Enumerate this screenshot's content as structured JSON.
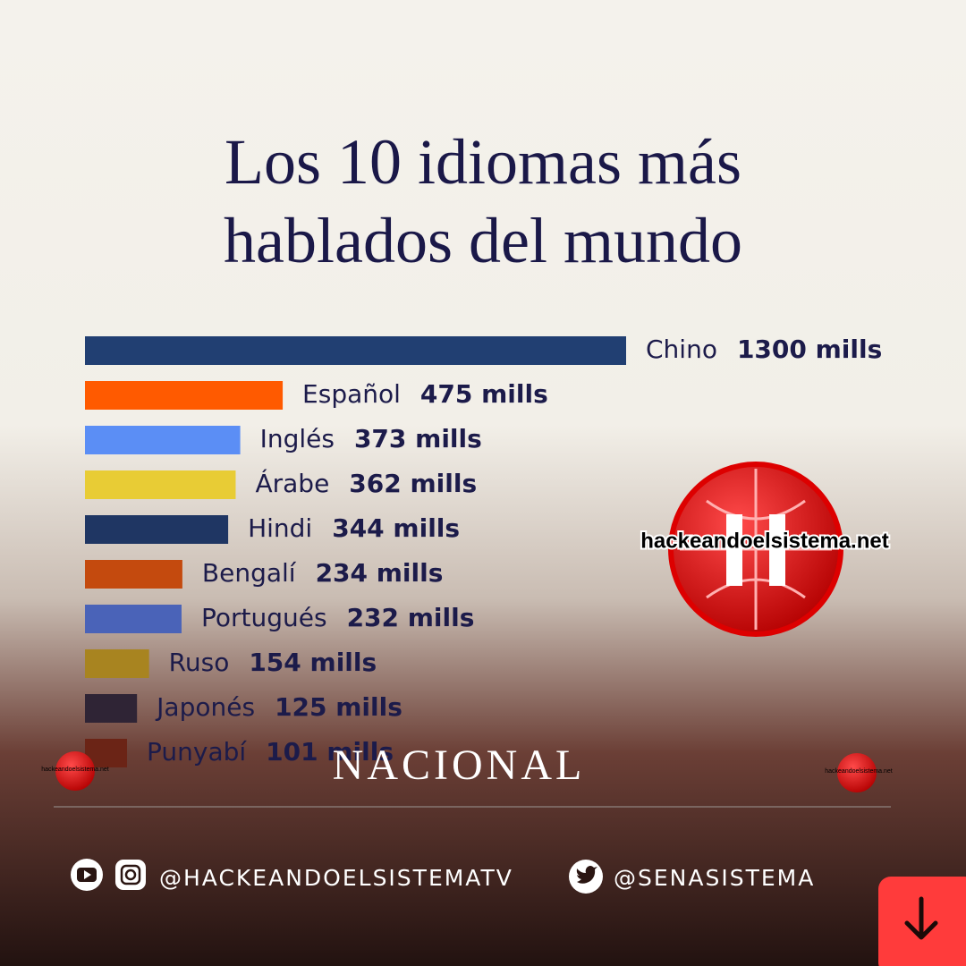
{
  "chart_data": {
    "type": "bar",
    "title": "Los 10 idiomas más hablados del mundo",
    "categories": [
      "Chino",
      "Español",
      "Inglés",
      "Árabe",
      "Hindi",
      "Bengalí",
      "Portugués",
      "Ruso",
      "Japonés",
      "Punyabí"
    ],
    "values": [
      1300,
      475,
      373,
      362,
      344,
      234,
      232,
      154,
      125,
      101
    ],
    "value_labels": [
      "1300 mills",
      "475 mills",
      "373 mills",
      "362 mills",
      "344 mills",
      "234 mills",
      "232 mills",
      "154 mills",
      "125 mills",
      "101 mills"
    ],
    "colors": [
      "#213f72",
      "#ff5a00",
      "#5b8ef5",
      "#e8cc35",
      "#1f3663",
      "#c44a0e",
      "#4a63b8",
      "#a88420",
      "#2f2435",
      "#6b2416"
    ]
  },
  "watermark": "hackeandoelsistema.net",
  "section": "NACIONAL",
  "social": {
    "youtube_instagram": "@HACKEANDOELSISTEMATV",
    "twitter": "@SENASISTEMA"
  }
}
